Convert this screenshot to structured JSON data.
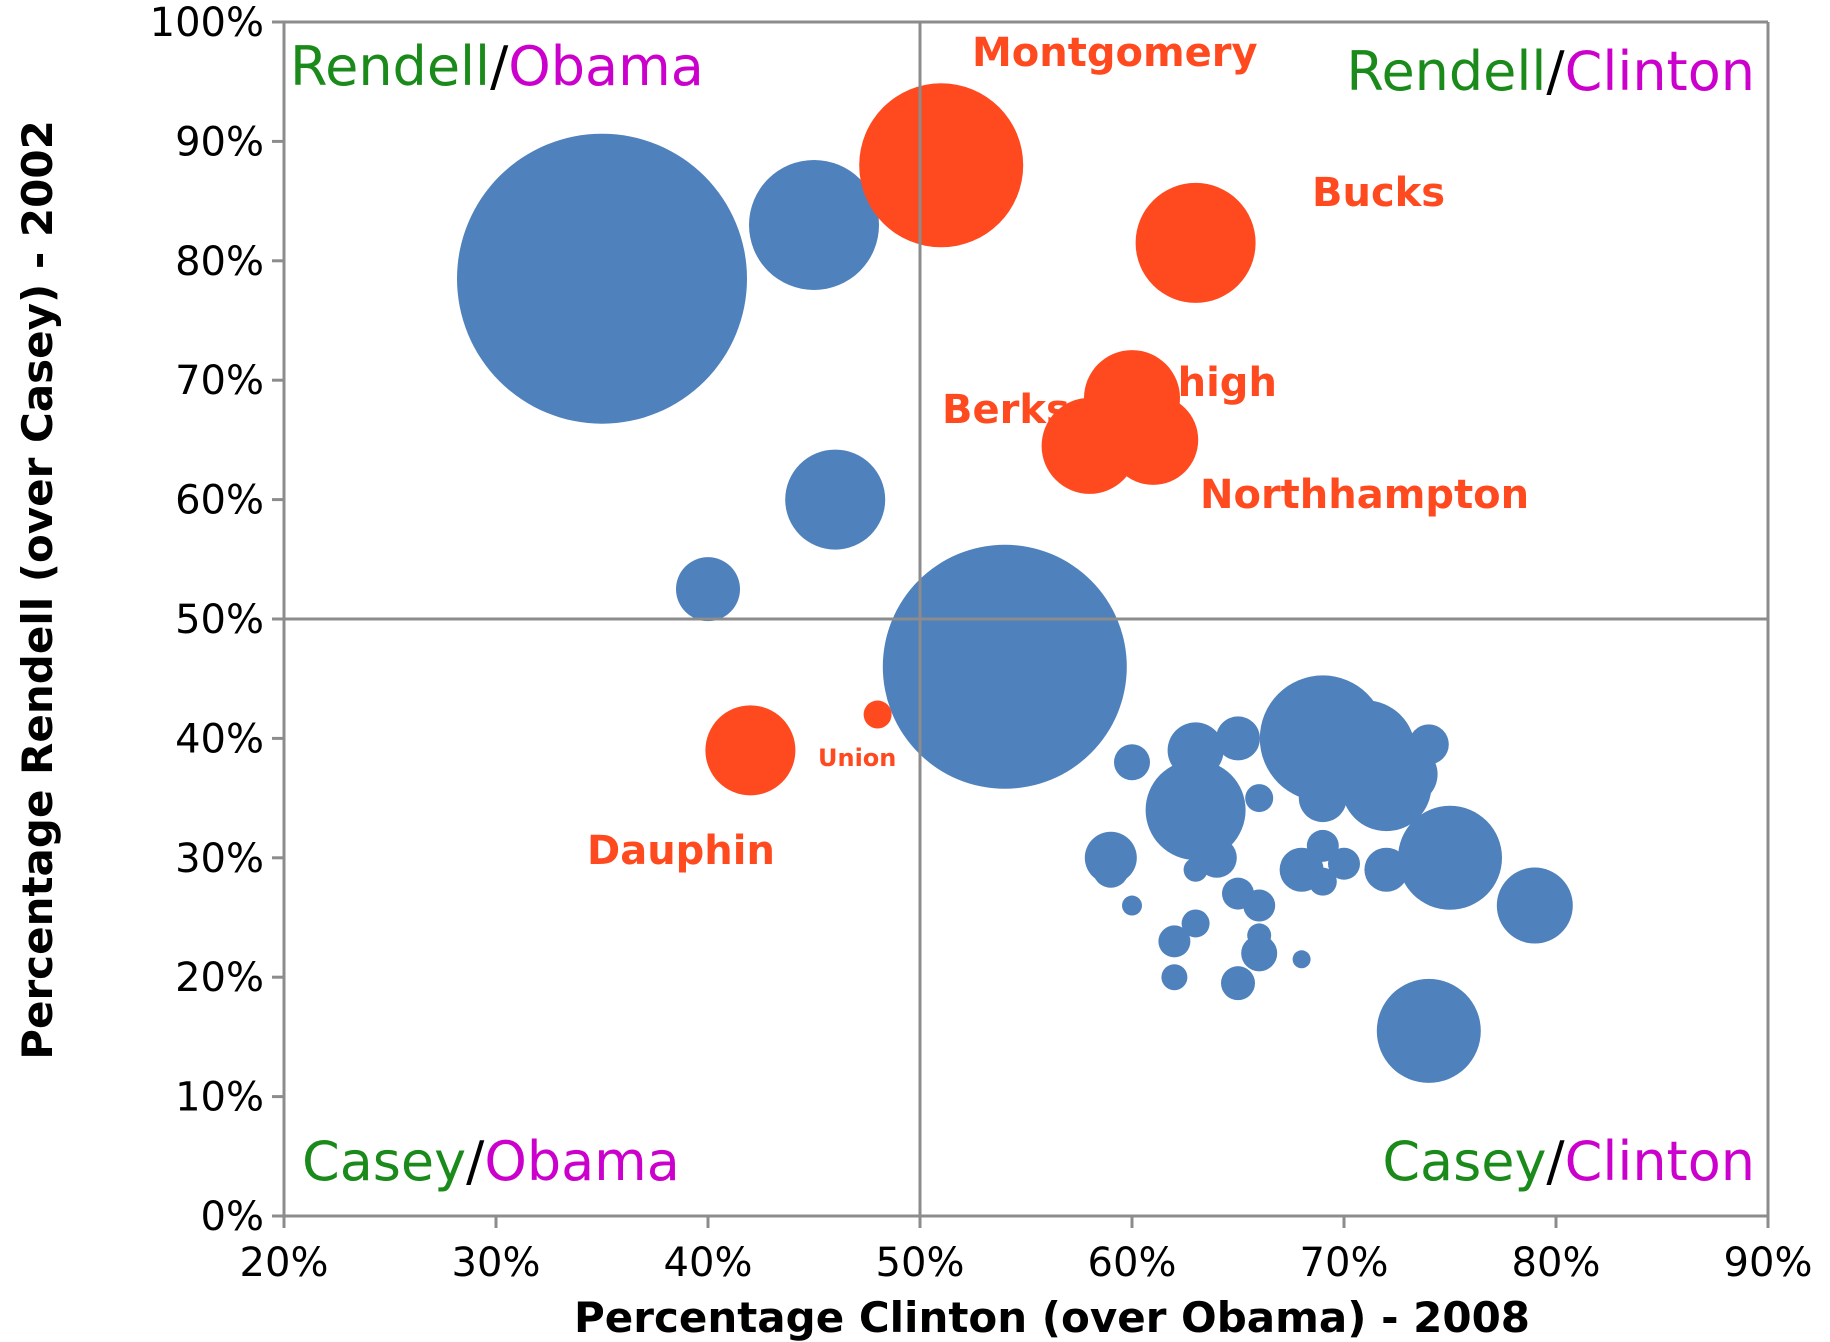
{
  "chart_data": {
    "type": "scatter",
    "xlabel": "Percentage Clinton (over Obama) - 2008",
    "ylabel": "Percentage Rendell (over Casey) - 2002",
    "xlim": [
      20,
      90
    ],
    "ylim": [
      0,
      100
    ],
    "x_ticks": [
      "20%",
      "30%",
      "40%",
      "50%",
      "60%",
      "70%",
      "80%",
      "90%"
    ],
    "y_ticks": [
      "0%",
      "10%",
      "20%",
      "30%",
      "40%",
      "50%",
      "60%",
      "70%",
      "80%",
      "90%",
      "100%"
    ],
    "reference_lines": {
      "x": 50,
      "y": 50
    },
    "grid": false,
    "colors": {
      "counties": "#4f81bd",
      "labeled": "#ff4a20",
      "rendell": "#1a8a1a",
      "obama_clinton": "#cc00cc",
      "casey": "#1a8a1a",
      "divider": "#8c8c8c"
    },
    "quadrants": {
      "top_left": {
        "first": "Rendell",
        "sep": "/",
        "second": "Obama"
      },
      "top_right": {
        "first": "Rendell",
        "sep": "/",
        "second": "Clinton"
      },
      "bottom_left": {
        "first": "Casey",
        "sep": "/",
        "second": "Obama"
      },
      "bottom_right": {
        "first": "Casey",
        "sep": "/",
        "second": "Clinton"
      }
    },
    "labeled_points": [
      {
        "label": "Montgomery",
        "x": 51,
        "y": 88,
        "size": 82
      },
      {
        "label": "Bucks",
        "x": 63,
        "y": 81.5,
        "size": 60
      },
      {
        "label": "Lehigh",
        "x": 60,
        "y": 68.5,
        "size": 48
      },
      {
        "label": "Berks",
        "x": 58,
        "y": 64.5,
        "size": 48
      },
      {
        "label": "Northhampton",
        "x": 61,
        "y": 65,
        "size": 45
      },
      {
        "label": "Dauphin",
        "x": 42,
        "y": 39,
        "size": 45
      },
      {
        "label": "Union",
        "x": 48,
        "y": 42,
        "size": 14
      }
    ],
    "points": [
      {
        "x": 35,
        "y": 78.5,
        "size": 145
      },
      {
        "x": 54,
        "y": 46,
        "size": 122
      },
      {
        "x": 45,
        "y": 83,
        "size": 65
      },
      {
        "x": 46,
        "y": 60,
        "size": 50
      },
      {
        "x": 40,
        "y": 52.5,
        "size": 32
      },
      {
        "x": 69,
        "y": 40,
        "size": 63
      },
      {
        "x": 75,
        "y": 30,
        "size": 52
      },
      {
        "x": 63,
        "y": 34,
        "size": 50
      },
      {
        "x": 71,
        "y": 39,
        "size": 50
      },
      {
        "x": 72,
        "y": 36,
        "size": 45
      },
      {
        "x": 73,
        "y": 37,
        "size": 30
      },
      {
        "x": 74,
        "y": 15.5,
        "size": 52
      },
      {
        "x": 79,
        "y": 26,
        "size": 38
      },
      {
        "x": 63,
        "y": 39,
        "size": 28
      },
      {
        "x": 65,
        "y": 40,
        "size": 22
      },
      {
        "x": 60,
        "y": 38,
        "size": 18
      },
      {
        "x": 66,
        "y": 35,
        "size": 14
      },
      {
        "x": 59,
        "y": 30,
        "size": 26
      },
      {
        "x": 59,
        "y": 29,
        "size": 18
      },
      {
        "x": 64,
        "y": 30,
        "size": 20
      },
      {
        "x": 63,
        "y": 29,
        "size": 12
      },
      {
        "x": 68,
        "y": 29,
        "size": 22
      },
      {
        "x": 69,
        "y": 28,
        "size": 14
      },
      {
        "x": 69,
        "y": 31,
        "size": 16
      },
      {
        "x": 70,
        "y": 29.5,
        "size": 16
      },
      {
        "x": 72,
        "y": 29,
        "size": 22
      },
      {
        "x": 69,
        "y": 35,
        "size": 24
      },
      {
        "x": 74,
        "y": 39.5,
        "size": 20
      },
      {
        "x": 65,
        "y": 27,
        "size": 16
      },
      {
        "x": 66,
        "y": 26,
        "size": 16
      },
      {
        "x": 60,
        "y": 26,
        "size": 10
      },
      {
        "x": 63,
        "y": 24.5,
        "size": 14
      },
      {
        "x": 62,
        "y": 23,
        "size": 16
      },
      {
        "x": 66,
        "y": 23.5,
        "size": 12
      },
      {
        "x": 66,
        "y": 22,
        "size": 18
      },
      {
        "x": 68,
        "y": 21.5,
        "size": 9
      },
      {
        "x": 62,
        "y": 20,
        "size": 13
      },
      {
        "x": 65,
        "y": 19.5,
        "size": 17
      }
    ]
  }
}
